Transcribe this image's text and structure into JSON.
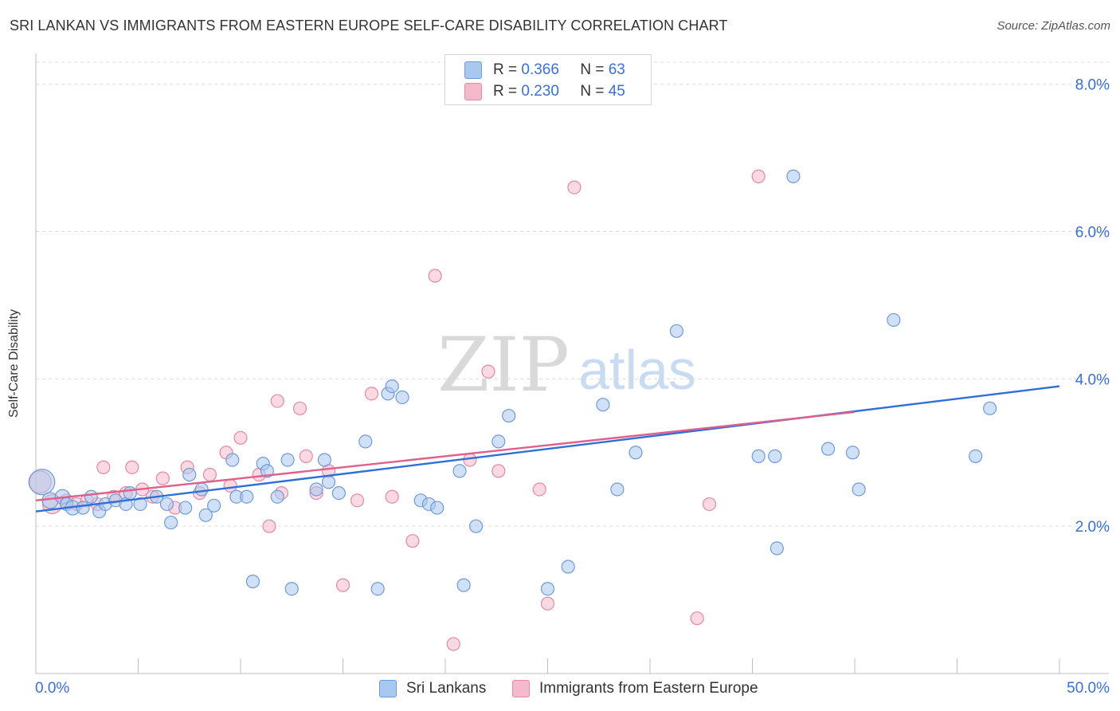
{
  "header": {
    "title": "SRI LANKAN VS IMMIGRANTS FROM EASTERN EUROPE SELF-CARE DISABILITY CORRELATION CHART",
    "source": "Source: ZipAtlas.com"
  },
  "watermark": {
    "zip": "ZIP",
    "atlas": "atlas"
  },
  "legend_top": {
    "r_label": "R =",
    "n_label": "N =",
    "rows": [
      {
        "r": "0.366",
        "n": "63"
      },
      {
        "r": "0.230",
        "n": "45"
      }
    ]
  },
  "legend_bottom": {
    "items": [
      "Sri Lankans",
      "Immigrants from Eastern Europe"
    ]
  },
  "colors": {
    "blue_fill": "#a9c8f0",
    "blue_stroke": "#6f9ad8",
    "blue_line": "#2f6fd6",
    "pink_fill": "#f6b9cc",
    "pink_stroke": "#e28aa6",
    "pink_line": "#e0608c",
    "tick_label": "#3a6fd8",
    "grid": "#dcdcdc"
  },
  "chart_data": {
    "type": "scatter",
    "title": "SRI LANKAN VS IMMIGRANTS FROM EASTERN EUROPE SELF-CARE DISABILITY CORRELATION CHART",
    "xlabel": "",
    "ylabel": "Self-Care Disability",
    "xlim": [
      0,
      50
    ],
    "ylim": [
      0,
      8.3
    ],
    "x_tick_labels": [
      "0.0%",
      "50.0%"
    ],
    "y_ticks": [
      2.0,
      4.0,
      6.0,
      8.0
    ],
    "y_tick_labels": [
      "2.0%",
      "4.0%",
      "6.0%",
      "8.0%"
    ],
    "grid": "horizontal dashed",
    "legend_position": "top-center",
    "series": [
      {
        "name": "Sri Lankans",
        "r": 0.366,
        "n": 63,
        "trend": {
          "x": [
            0,
            50
          ],
          "y": [
            2.2,
            3.9
          ]
        },
        "points": [
          [
            0.3,
            2.6,
            16
          ],
          [
            0.7,
            2.35,
            10
          ],
          [
            1.3,
            2.4,
            9
          ],
          [
            1.5,
            2.3,
            8
          ],
          [
            1.8,
            2.25,
            9
          ],
          [
            2.3,
            2.25,
            8
          ],
          [
            2.7,
            2.4,
            8
          ],
          [
            3.1,
            2.2,
            8
          ],
          [
            3.4,
            2.3,
            8
          ],
          [
            3.9,
            2.35,
            8
          ],
          [
            4.4,
            2.3,
            8
          ],
          [
            4.6,
            2.45,
            8
          ],
          [
            5.1,
            2.3,
            8
          ],
          [
            5.9,
            2.4,
            8
          ],
          [
            6.4,
            2.3,
            8
          ],
          [
            6.6,
            2.05,
            8
          ],
          [
            7.3,
            2.25,
            8
          ],
          [
            7.5,
            2.7,
            8
          ],
          [
            8.1,
            2.5,
            8
          ],
          [
            8.3,
            2.15,
            8
          ],
          [
            8.7,
            2.28,
            8
          ],
          [
            9.6,
            2.9,
            8
          ],
          [
            9.8,
            2.4,
            8
          ],
          [
            10.3,
            2.4,
            8
          ],
          [
            10.6,
            1.25,
            8
          ],
          [
            11.1,
            2.85,
            8
          ],
          [
            11.3,
            2.75,
            8
          ],
          [
            11.8,
            2.4,
            8
          ],
          [
            12.3,
            2.9,
            8
          ],
          [
            12.5,
            1.15,
            8
          ],
          [
            13.7,
            2.5,
            8
          ],
          [
            14.1,
            2.9,
            8
          ],
          [
            14.3,
            2.6,
            8
          ],
          [
            14.8,
            2.45,
            8
          ],
          [
            16.1,
            3.15,
            8
          ],
          [
            16.7,
            1.15,
            8
          ],
          [
            17.2,
            3.8,
            8
          ],
          [
            17.4,
            3.9,
            8
          ],
          [
            17.9,
            3.75,
            8
          ],
          [
            18.8,
            2.35,
            8
          ],
          [
            19.2,
            2.3,
            8
          ],
          [
            19.6,
            2.25,
            8
          ],
          [
            20.7,
            2.75,
            8
          ],
          [
            20.9,
            1.2,
            8
          ],
          [
            21.5,
            2.0,
            8
          ],
          [
            22.6,
            3.15,
            8
          ],
          [
            23.1,
            3.5,
            8
          ],
          [
            25.0,
            1.15,
            8
          ],
          [
            26.0,
            1.45,
            8
          ],
          [
            27.7,
            3.65,
            8
          ],
          [
            28.4,
            2.5,
            8
          ],
          [
            29.3,
            3.0,
            8
          ],
          [
            31.3,
            4.65,
            8
          ],
          [
            35.3,
            2.95,
            8
          ],
          [
            36.2,
            1.7,
            8
          ],
          [
            37.0,
            6.75,
            8
          ],
          [
            38.7,
            3.05,
            8
          ],
          [
            39.9,
            3.0,
            8
          ],
          [
            40.2,
            2.5,
            8
          ],
          [
            41.9,
            4.8,
            8
          ],
          [
            45.9,
            2.95,
            8
          ],
          [
            46.6,
            3.6,
            8
          ],
          [
            36.1,
            2.95,
            8
          ]
        ]
      },
      {
        "name": "Immigrants from Eastern Europe",
        "r": 0.23,
        "n": 45,
        "trend": {
          "x": [
            0,
            40
          ],
          "y": [
            2.35,
            3.55
          ]
        },
        "points": [
          [
            0.2,
            2.6,
            14
          ],
          [
            0.8,
            2.3,
            12
          ],
          [
            1.5,
            2.35,
            8
          ],
          [
            2.0,
            2.3,
            8
          ],
          [
            2.5,
            2.35,
            8
          ],
          [
            3.0,
            2.3,
            8
          ],
          [
            3.3,
            2.8,
            8
          ],
          [
            3.8,
            2.4,
            8
          ],
          [
            4.4,
            2.45,
            8
          ],
          [
            4.7,
            2.8,
            8
          ],
          [
            5.2,
            2.5,
            8
          ],
          [
            5.7,
            2.4,
            8
          ],
          [
            6.2,
            2.65,
            8
          ],
          [
            6.8,
            2.25,
            8
          ],
          [
            7.4,
            2.8,
            8
          ],
          [
            8.0,
            2.45,
            8
          ],
          [
            8.5,
            2.7,
            8
          ],
          [
            9.3,
            3.0,
            8
          ],
          [
            9.5,
            2.55,
            8
          ],
          [
            10.0,
            3.2,
            8
          ],
          [
            10.9,
            2.7,
            8
          ],
          [
            11.4,
            2.0,
            8
          ],
          [
            11.8,
            3.7,
            8
          ],
          [
            12.0,
            2.45,
            8
          ],
          [
            12.9,
            3.6,
            8
          ],
          [
            13.2,
            2.95,
            8
          ],
          [
            13.7,
            2.45,
            8
          ],
          [
            14.3,
            2.75,
            8
          ],
          [
            15.0,
            1.2,
            8
          ],
          [
            15.7,
            2.35,
            8
          ],
          [
            16.4,
            3.8,
            8
          ],
          [
            17.4,
            2.4,
            8
          ],
          [
            18.4,
            1.8,
            8
          ],
          [
            19.5,
            5.4,
            8
          ],
          [
            20.4,
            0.4,
            8
          ],
          [
            21.2,
            2.9,
            8
          ],
          [
            22.1,
            4.1,
            8
          ],
          [
            22.6,
            2.75,
            8
          ],
          [
            24.6,
            2.5,
            8
          ],
          [
            25.0,
            0.95,
            8
          ],
          [
            26.3,
            6.6,
            8
          ],
          [
            32.3,
            0.75,
            8
          ],
          [
            32.9,
            2.3,
            8
          ],
          [
            35.3,
            6.75,
            8
          ],
          [
            21.6,
            7.85,
            8
          ]
        ]
      }
    ]
  }
}
